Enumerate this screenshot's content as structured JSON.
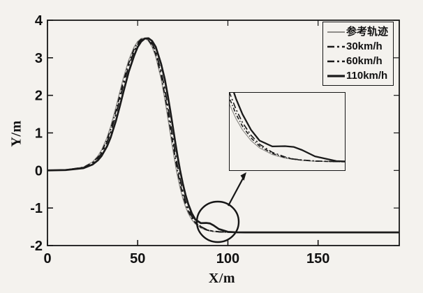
{
  "figure": {
    "background": "#f4f2ee",
    "axis_color": "#161616",
    "tick_label_color": "#111111"
  },
  "chart_data": {
    "type": "line",
    "title": "",
    "xlabel": "X/m",
    "ylabel": "Y/m",
    "xlim": [
      0,
      195
    ],
    "ylim": [
      -2,
      4
    ],
    "x_ticks": [
      0,
      50,
      100,
      150
    ],
    "y_ticks": [
      -2,
      -1,
      0,
      1,
      2,
      3,
      4
    ],
    "grid": false,
    "legend_position": "top-right",
    "x": [
      0,
      10,
      20,
      25,
      28,
      30,
      33,
      35,
      38,
      40,
      42,
      45,
      48,
      50,
      52,
      54,
      56,
      58,
      60,
      63,
      65,
      66.5,
      68,
      69,
      71,
      72,
      73.5,
      75,
      76.5,
      78,
      80,
      82,
      85,
      88,
      90,
      92,
      95,
      100,
      105,
      110,
      120,
      140,
      160,
      180,
      195
    ],
    "series": [
      {
        "name": "参考轨迹",
        "style": {
          "color": "#8f8d89",
          "width": 1.4,
          "dash": "",
          "legend_dash": ""
        },
        "values": [
          0.002,
          0.013,
          0.091,
          0.228,
          0.387,
          0.544,
          0.875,
          1.166,
          1.691,
          2.072,
          2.446,
          2.934,
          3.287,
          3.435,
          3.513,
          3.52,
          3.448,
          3.291,
          3.033,
          2.437,
          1.91,
          1.467,
          1.006,
          0.702,
          0.132,
          -0.124,
          -0.461,
          -0.739,
          -0.963,
          -1.138,
          -1.309,
          -1.425,
          -1.531,
          -1.588,
          -1.609,
          -1.624,
          -1.637,
          -1.645,
          -1.648,
          -1.65,
          -1.65,
          -1.65,
          -1.65,
          -1.65,
          -1.65
        ]
      },
      {
        "name": "30km/h",
        "style": {
          "color": "#1a1a1a",
          "width": 1.9,
          "dash": "8 4 2 4",
          "legend_dash": "10 4 3 4"
        },
        "values": [
          0.002,
          0.012,
          0.082,
          0.207,
          0.355,
          0.5,
          0.812,
          1.088,
          1.597,
          1.977,
          2.355,
          2.852,
          3.228,
          3.4,
          3.494,
          3.521,
          3.466,
          3.33,
          3.1,
          2.54,
          2.015,
          1.615,
          1.16,
          0.853,
          0.275,
          0.004,
          -0.348,
          -0.646,
          -0.889,
          -1.08,
          -1.266,
          -1.396,
          -1.513,
          -1.578,
          -1.606,
          -1.62,
          -1.635,
          -1.644,
          -1.648,
          -1.65,
          -1.65,
          -1.65,
          -1.65,
          -1.65,
          -1.65
        ]
      },
      {
        "name": "60km/h",
        "style": {
          "color": "#1a1a1a",
          "width": 1.9,
          "dash": "12 5 3 5",
          "legend_dash": "10 4 3 4"
        },
        "values": [
          0.002,
          0.012,
          0.075,
          0.19,
          0.325,
          0.46,
          0.752,
          1.013,
          1.506,
          1.88,
          2.262,
          2.784,
          3.168,
          3.361,
          3.474,
          3.517,
          3.495,
          3.381,
          3.162,
          2.636,
          2.174,
          1.763,
          1.313,
          1.006,
          0.41,
          0.132,
          -0.236,
          -0.554,
          -0.814,
          -1.021,
          -1.224,
          -1.367,
          -1.496,
          -1.569,
          -1.602,
          -1.617,
          -1.633,
          -1.643,
          -1.647,
          -1.65,
          -1.65,
          -1.65,
          -1.65,
          -1.65,
          -1.65
        ]
      },
      {
        "name": "110km/h",
        "style": {
          "color": "#1a1a1a",
          "width": 2.7,
          "dash": "",
          "legend_dash": ""
        },
        "values": [
          0.001,
          0.011,
          0.062,
          0.158,
          0.273,
          0.387,
          0.641,
          0.875,
          1.331,
          1.691,
          2.072,
          2.621,
          3.05,
          3.287,
          3.435,
          3.513,
          3.52,
          3.448,
          3.291,
          2.834,
          2.437,
          2.042,
          1.615,
          1.313,
          0.702,
          0.41,
          0.004,
          -0.348,
          -0.646,
          -0.889,
          -1.138,
          -1.309,
          -1.402,
          -1.398,
          -1.41,
          -1.46,
          -1.56,
          -1.635,
          -1.648,
          -1.65,
          -1.65,
          -1.65,
          -1.65,
          -1.65,
          -1.65
        ]
      }
    ],
    "inset": {
      "xlim": [
        75,
        102
      ],
      "ylim": [
        -1.78,
        -0.55
      ],
      "description": "zoom of circled convergence region"
    },
    "annotation": {
      "type": "circle-with-arrow",
      "circle_center_data": [
        94,
        -1.39
      ],
      "target": "inset"
    }
  },
  "legend": {
    "items": [
      "参考轨迹",
      "30km/h",
      "60km/h",
      "110km/h"
    ]
  }
}
